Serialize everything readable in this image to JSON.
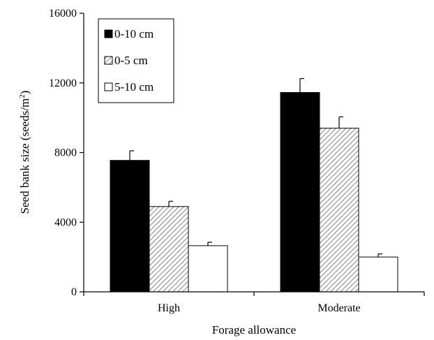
{
  "chart_data": {
    "type": "bar",
    "title": "",
    "xlabel": "Forage allowance",
    "ylabel_main": "Seed bank size (seeds/m",
    "ylabel_sup": "2",
    "ylabel_end": ")",
    "ylim": [
      0,
      16000
    ],
    "yticks": [
      0,
      4000,
      8000,
      12000,
      16000
    ],
    "ytick_labels": [
      "0",
      "4000",
      "8000",
      "12000",
      "16000"
    ],
    "categories": [
      "High",
      "Moderate"
    ],
    "grid": false,
    "legend_position": "top-left",
    "series": [
      {
        "name": "0-10 cm",
        "fill": "solid-black",
        "values": [
          7550,
          11450
        ],
        "errors": [
          550,
          800
        ]
      },
      {
        "name": "0-5 cm",
        "fill": "diagonal-hatch",
        "values": [
          4900,
          9400
        ],
        "errors": [
          300,
          650
        ]
      },
      {
        "name": "5-10 cm",
        "fill": "white",
        "values": [
          2650,
          2000
        ],
        "errors": [
          200,
          180
        ]
      }
    ]
  },
  "colors": {
    "solid": "#000000",
    "hatch_line": "#8c8c8c",
    "hatch_bg": "#ffffff",
    "open": "#ffffff",
    "axis": "#000000"
  }
}
